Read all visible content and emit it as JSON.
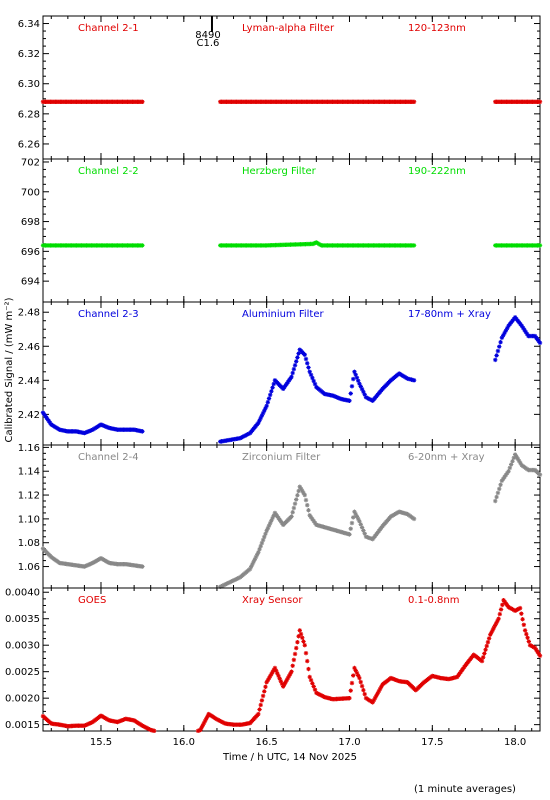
{
  "chart_data": {
    "type": "scatter",
    "xlabel": "Time / h UTC, 14 Nov 2025",
    "ylabel": "Calibrated Signal / (mW m⁻²)",
    "footnote": "(1 minute averages)",
    "xlim": [
      15.15,
      18.15
    ],
    "x_ticks": [
      "15.5",
      "16.0",
      "16.5",
      "17.0",
      "17.5",
      "18.0"
    ],
    "x_tick_values": [
      15.5,
      16.0,
      16.5,
      17.0,
      17.5,
      18.0
    ],
    "grid": false,
    "flare_marker": {
      "x": 16.17,
      "label_top": "8490",
      "label_bottom": "C1.6"
    },
    "panels": [
      {
        "color": "#e00000",
        "labels": [
          "Channel 2-1",
          "Lyman-alpha Filter",
          "120-123nm"
        ],
        "ylim": [
          6.25,
          6.345
        ],
        "y_ticks": [
          "6.26",
          "6.28",
          "6.30",
          "6.32",
          "6.34"
        ],
        "y_tick_values": [
          6.26,
          6.28,
          6.3,
          6.32,
          6.34
        ],
        "points": [
          [
            15.15,
            6.288
          ],
          [
            15.45,
            6.288
          ],
          [
            15.75,
            6.288
          ],
          [
            16.22,
            6.288
          ],
          [
            16.5,
            6.288
          ],
          [
            16.8,
            6.288
          ],
          [
            17.1,
            6.288
          ],
          [
            17.39,
            6.288
          ],
          [
            17.88,
            6.288
          ],
          [
            18.15,
            6.288
          ]
        ],
        "gaps": [
          [
            15.75,
            16.22
          ],
          [
            17.39,
            17.88
          ]
        ]
      },
      {
        "color": "#00dd00",
        "labels": [
          "Channel 2-2",
          "Herzberg Filter",
          "190-222nm"
        ],
        "ylim": [
          692.6,
          702.2
        ],
        "y_ticks": [
          "694",
          "696",
          "698",
          "700",
          "702"
        ],
        "y_tick_values": [
          694,
          696,
          698,
          700,
          702
        ],
        "points": [
          [
            15.15,
            696.4
          ],
          [
            15.45,
            696.4
          ],
          [
            15.75,
            696.4
          ],
          [
            16.22,
            696.4
          ],
          [
            16.5,
            696.4
          ],
          [
            16.78,
            696.5
          ],
          [
            16.8,
            696.6
          ],
          [
            16.83,
            696.4
          ],
          [
            17.1,
            696.4
          ],
          [
            17.39,
            696.4
          ],
          [
            17.88,
            696.4
          ],
          [
            18.15,
            696.4
          ]
        ],
        "gaps": [
          [
            15.75,
            16.22
          ],
          [
            17.39,
            17.88
          ]
        ]
      },
      {
        "color": "#0000dd",
        "labels": [
          "Channel 2-3",
          "Aluminium Filter",
          "17-80nm + Xray"
        ],
        "ylim": [
          2.402,
          2.486
        ],
        "y_ticks": [
          "2.42",
          "2.44",
          "2.46",
          "2.48"
        ],
        "y_tick_values": [
          2.42,
          2.44,
          2.46,
          2.48
        ],
        "points": [
          [
            15.15,
            2.421
          ],
          [
            15.2,
            2.414
          ],
          [
            15.25,
            2.411
          ],
          [
            15.3,
            2.41
          ],
          [
            15.35,
            2.41
          ],
          [
            15.4,
            2.409
          ],
          [
            15.45,
            2.411
          ],
          [
            15.5,
            2.414
          ],
          [
            15.55,
            2.412
          ],
          [
            15.6,
            2.411
          ],
          [
            15.65,
            2.411
          ],
          [
            15.7,
            2.411
          ],
          [
            15.75,
            2.41
          ],
          [
            16.22,
            2.404
          ],
          [
            16.28,
            2.405
          ],
          [
            16.34,
            2.406
          ],
          [
            16.4,
            2.409
          ],
          [
            16.45,
            2.415
          ],
          [
            16.5,
            2.425
          ],
          [
            16.55,
            2.44
          ],
          [
            16.6,
            2.435
          ],
          [
            16.65,
            2.442
          ],
          [
            16.7,
            2.458
          ],
          [
            16.73,
            2.455
          ],
          [
            16.76,
            2.445
          ],
          [
            16.8,
            2.436
          ],
          [
            16.85,
            2.432
          ],
          [
            16.9,
            2.431
          ],
          [
            16.95,
            2.429
          ],
          [
            17.0,
            2.428
          ],
          [
            17.03,
            2.445
          ],
          [
            17.06,
            2.438
          ],
          [
            17.1,
            2.43
          ],
          [
            17.14,
            2.428
          ],
          [
            17.2,
            2.435
          ],
          [
            17.25,
            2.44
          ],
          [
            17.3,
            2.444
          ],
          [
            17.35,
            2.441
          ],
          [
            17.39,
            2.44
          ],
          [
            17.88,
            2.452
          ],
          [
            17.92,
            2.465
          ],
          [
            17.96,
            2.472
          ],
          [
            18.0,
            2.477
          ],
          [
            18.04,
            2.472
          ],
          [
            18.08,
            2.466
          ],
          [
            18.12,
            2.466
          ],
          [
            18.15,
            2.462
          ]
        ],
        "gaps": [
          [
            15.75,
            16.22
          ],
          [
            17.39,
            17.88
          ]
        ]
      },
      {
        "color": "#888888",
        "labels": [
          "Channel 2-4",
          "Zirconium Filter",
          "6-20nm + Xray"
        ],
        "ylim": [
          1.042,
          1.162
        ],
        "y_ticks": [
          "1.06",
          "1.08",
          "1.10",
          "1.12",
          "1.14",
          "1.16"
        ],
        "y_tick_values": [
          1.06,
          1.08,
          1.1,
          1.12,
          1.14,
          1.16
        ],
        "points": [
          [
            15.15,
            1.075
          ],
          [
            15.2,
            1.068
          ],
          [
            15.25,
            1.063
          ],
          [
            15.3,
            1.062
          ],
          [
            15.35,
            1.061
          ],
          [
            15.4,
            1.06
          ],
          [
            15.45,
            1.063
          ],
          [
            15.5,
            1.067
          ],
          [
            15.55,
            1.063
          ],
          [
            15.6,
            1.062
          ],
          [
            15.65,
            1.062
          ],
          [
            15.7,
            1.061
          ],
          [
            15.75,
            1.06
          ],
          [
            16.22,
            1.043
          ],
          [
            16.28,
            1.047
          ],
          [
            16.34,
            1.051
          ],
          [
            16.4,
            1.058
          ],
          [
            16.45,
            1.072
          ],
          [
            16.5,
            1.09
          ],
          [
            16.55,
            1.105
          ],
          [
            16.6,
            1.095
          ],
          [
            16.65,
            1.102
          ],
          [
            16.7,
            1.127
          ],
          [
            16.73,
            1.12
          ],
          [
            16.76,
            1.103
          ],
          [
            16.8,
            1.095
          ],
          [
            16.85,
            1.093
          ],
          [
            16.9,
            1.091
          ],
          [
            16.95,
            1.089
          ],
          [
            17.0,
            1.087
          ],
          [
            17.03,
            1.106
          ],
          [
            17.06,
            1.098
          ],
          [
            17.1,
            1.085
          ],
          [
            17.14,
            1.083
          ],
          [
            17.2,
            1.094
          ],
          [
            17.25,
            1.102
          ],
          [
            17.3,
            1.106
          ],
          [
            17.35,
            1.104
          ],
          [
            17.39,
            1.1
          ],
          [
            17.88,
            1.115
          ],
          [
            17.92,
            1.132
          ],
          [
            17.96,
            1.14
          ],
          [
            18.0,
            1.154
          ],
          [
            18.04,
            1.145
          ],
          [
            18.08,
            1.141
          ],
          [
            18.12,
            1.141
          ],
          [
            18.15,
            1.137
          ]
        ],
        "gaps": [
          [
            15.75,
            16.22
          ],
          [
            17.39,
            17.88
          ]
        ]
      },
      {
        "color": "#e00000",
        "labels": [
          "GOES",
          "Xray Sensor",
          "0.1-0.8nm"
        ],
        "ylim": [
          0.00138,
          0.00408
        ],
        "y_ticks": [
          "0.0015",
          "0.0020",
          "0.0025",
          "0.0030",
          "0.0035",
          "0.0040"
        ],
        "y_tick_values": [
          0.0015,
          0.002,
          0.0025,
          0.003,
          0.0035,
          0.004
        ],
        "points": [
          [
            15.15,
            0.00166
          ],
          [
            15.2,
            0.00152
          ],
          [
            15.25,
            0.0015
          ],
          [
            15.3,
            0.00147
          ],
          [
            15.35,
            0.00148
          ],
          [
            15.4,
            0.00148
          ],
          [
            15.45,
            0.00155
          ],
          [
            15.5,
            0.00167
          ],
          [
            15.55,
            0.00158
          ],
          [
            15.6,
            0.00155
          ],
          [
            15.65,
            0.00161
          ],
          [
            15.7,
            0.00158
          ],
          [
            15.75,
            0.00148
          ],
          [
            15.8,
            0.0014
          ],
          [
            15.85,
            0.00136
          ],
          [
            15.9,
            0.00134
          ],
          [
            15.95,
            0.00133
          ],
          [
            16.0,
            0.00135
          ],
          [
            16.05,
            0.00134
          ],
          [
            16.1,
            0.0014
          ],
          [
            16.15,
            0.0017
          ],
          [
            16.2,
            0.0016
          ],
          [
            16.25,
            0.00152
          ],
          [
            16.3,
            0.0015
          ],
          [
            16.35,
            0.0015
          ],
          [
            16.4,
            0.00153
          ],
          [
            16.45,
            0.0017
          ],
          [
            16.5,
            0.0023
          ],
          [
            16.55,
            0.00257
          ],
          [
            16.6,
            0.00222
          ],
          [
            16.65,
            0.0025
          ],
          [
            16.7,
            0.00328
          ],
          [
            16.73,
            0.003
          ],
          [
            16.76,
            0.0024
          ],
          [
            16.8,
            0.0021
          ],
          [
            16.85,
            0.00202
          ],
          [
            16.9,
            0.00198
          ],
          [
            16.95,
            0.00199
          ],
          [
            17.0,
            0.002
          ],
          [
            17.03,
            0.00257
          ],
          [
            17.06,
            0.00238
          ],
          [
            17.1,
            0.002
          ],
          [
            17.14,
            0.00192
          ],
          [
            17.2,
            0.00226
          ],
          [
            17.25,
            0.00238
          ],
          [
            17.3,
            0.00232
          ],
          [
            17.35,
            0.0023
          ],
          [
            17.4,
            0.00215
          ],
          [
            17.45,
            0.0023
          ],
          [
            17.5,
            0.00242
          ],
          [
            17.55,
            0.00238
          ],
          [
            17.6,
            0.00236
          ],
          [
            17.65,
            0.0024
          ],
          [
            17.7,
            0.00262
          ],
          [
            17.75,
            0.00282
          ],
          [
            17.8,
            0.0027
          ],
          [
            17.85,
            0.0032
          ],
          [
            17.9,
            0.0035
          ],
          [
            17.93,
            0.00385
          ],
          [
            17.96,
            0.00372
          ],
          [
            18.0,
            0.00365
          ],
          [
            18.03,
            0.0037
          ],
          [
            18.06,
            0.00328
          ],
          [
            18.09,
            0.003
          ],
          [
            18.12,
            0.00295
          ],
          [
            18.15,
            0.0028
          ]
        ],
        "gaps": []
      }
    ]
  }
}
